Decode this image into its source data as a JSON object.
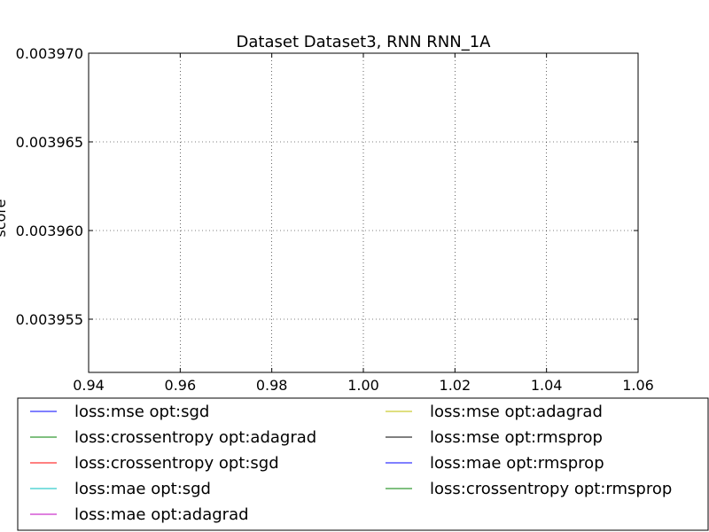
{
  "chart_data": {
    "type": "line",
    "title": "Dataset Dataset3, RNN RNN_1A",
    "xlabel": "",
    "ylabel": "score",
    "xlim": [
      0.94,
      1.06
    ],
    "ylim": [
      0.003952,
      0.00397
    ],
    "x_ticks": [
      "0.94",
      "0.96",
      "0.98",
      "1.00",
      "1.02",
      "1.04",
      "1.06"
    ],
    "y_ticks": [
      "0.003955",
      "0.003960",
      "0.003965",
      "0.003970"
    ],
    "grid": true,
    "legend_position": "bottom",
    "series": [
      {
        "name": "loss:mse opt:sgd",
        "color": "#0000ff",
        "x": [],
        "y": []
      },
      {
        "name": "loss:crossentropy opt:adagrad",
        "color": "#008000",
        "x": [],
        "y": []
      },
      {
        "name": "loss:crossentropy opt:sgd",
        "color": "#ff0000",
        "x": [],
        "y": []
      },
      {
        "name": "loss:mae opt:sgd",
        "color": "#00bfbf",
        "x": [],
        "y": []
      },
      {
        "name": "loss:mae opt:adagrad",
        "color": "#bf00bf",
        "x": [],
        "y": []
      },
      {
        "name": "loss:mse opt:adagrad",
        "color": "#bfbf00",
        "x": [],
        "y": []
      },
      {
        "name": "loss:mse opt:rmsprop",
        "color": "#000000",
        "x": [],
        "y": []
      },
      {
        "name": "loss:mae opt:rmsprop",
        "color": "#0000ff",
        "x": [],
        "y": []
      },
      {
        "name": "loss:crossentropy opt:rmsprop",
        "color": "#008000",
        "x": [],
        "y": []
      }
    ]
  }
}
